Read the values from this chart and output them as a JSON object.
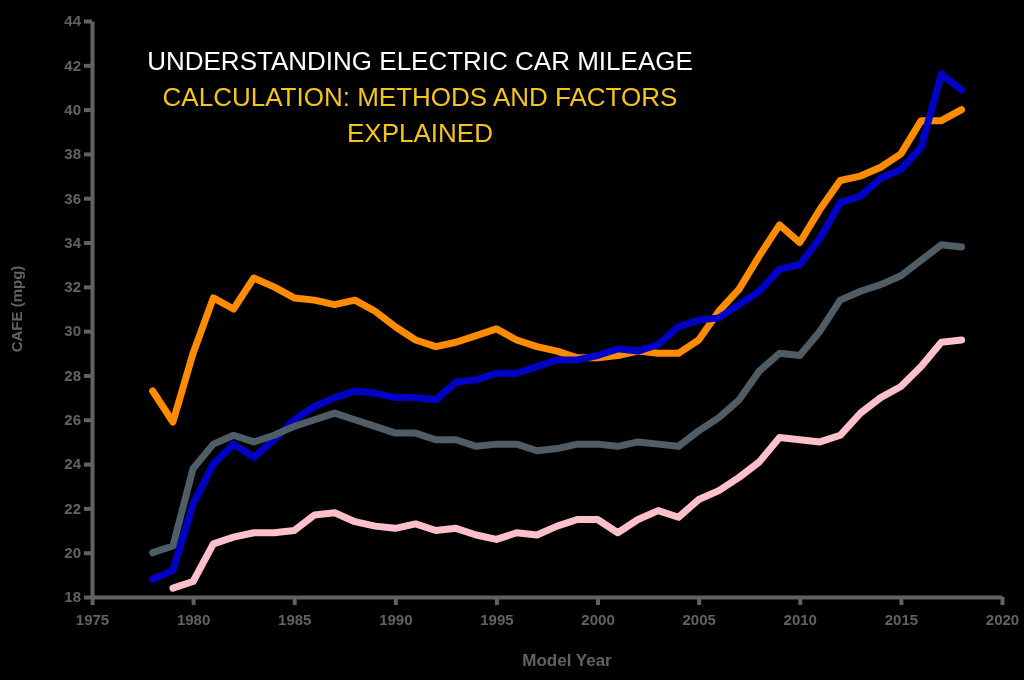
{
  "chart_data": {
    "type": "line",
    "title": "UNDERSTANDING ELECTRIC CAR MILEAGE CALCULATION: METHODS AND FACTORS EXPLAINED",
    "xlabel": "Model Year",
    "ylabel": "CAFE (mpg)",
    "xlim": [
      1975,
      2020
    ],
    "xticks": [
      1975,
      1980,
      1985,
      1990,
      1995,
      2000,
      2005,
      2010,
      2015,
      2020
    ],
    "ylim": [
      18,
      44
    ],
    "yticks": [
      18,
      20,
      22,
      24,
      26,
      28,
      30,
      32,
      34,
      36,
      38,
      40,
      42,
      44
    ],
    "grid": false,
    "marker": "none",
    "line_style": "solid",
    "series": [
      {
        "color": "#ff8c00",
        "x": [
          1978,
          1979,
          1980,
          1981,
          1982,
          1983,
          1984,
          1985,
          1986,
          1987,
          1988,
          1989,
          1990,
          1991,
          1992,
          1993,
          1994,
          1995,
          1996,
          1997,
          1998,
          1999,
          2000,
          2001,
          2002,
          2003,
          2004,
          2005,
          2006,
          2007,
          2008,
          2009,
          2010,
          2011,
          2012,
          2013,
          2014,
          2015,
          2016,
          2017,
          2018
        ],
        "values": [
          27.3,
          25.9,
          29.0,
          31.5,
          31.0,
          32.4,
          32.0,
          31.5,
          31.4,
          31.2,
          31.4,
          30.9,
          30.2,
          29.6,
          29.3,
          29.5,
          29.8,
          30.1,
          29.6,
          29.3,
          29.1,
          28.8,
          28.8,
          28.9,
          29.1,
          29.0,
          29.0,
          29.6,
          30.9,
          31.9,
          33.4,
          34.8,
          34.0,
          35.5,
          36.8,
          37.0,
          37.4,
          38.0,
          39.5,
          39.5,
          40.0
        ]
      },
      {
        "color": "#0000c8",
        "x": [
          1978,
          1979,
          1980,
          1981,
          1982,
          1983,
          1984,
          1985,
          1986,
          1987,
          1988,
          1989,
          1990,
          1991,
          1992,
          1993,
          1994,
          1995,
          1996,
          1997,
          1998,
          1999,
          2000,
          2001,
          2002,
          2003,
          2004,
          2005,
          2006,
          2007,
          2008,
          2009,
          2010,
          2011,
          2012,
          2013,
          2014,
          2015,
          2016,
          2017,
          2018
        ],
        "values": [
          18.8,
          19.2,
          22.2,
          24.0,
          24.9,
          24.3,
          25.1,
          26.0,
          26.6,
          27.0,
          27.3,
          27.2,
          27.0,
          27.0,
          26.9,
          27.7,
          27.8,
          28.1,
          28.1,
          28.4,
          28.7,
          28.7,
          28.9,
          29.2,
          29.1,
          29.4,
          30.2,
          30.5,
          30.6,
          31.2,
          31.8,
          32.8,
          33.0,
          34.2,
          35.8,
          36.1,
          36.9,
          37.3,
          38.3,
          41.6,
          40.9
        ]
      },
      {
        "color": "#4e5d66",
        "x": [
          1978,
          1979,
          1980,
          1981,
          1982,
          1983,
          1984,
          1985,
          1986,
          1987,
          1988,
          1989,
          1990,
          1991,
          1992,
          1993,
          1994,
          1995,
          1996,
          1997,
          1998,
          1999,
          2000,
          2001,
          2002,
          2003,
          2004,
          2005,
          2006,
          2007,
          2008,
          2009,
          2010,
          2011,
          2012,
          2013,
          2014,
          2015,
          2016,
          2017,
          2018
        ],
        "values": [
          20.0,
          20.3,
          23.8,
          24.9,
          25.3,
          25.0,
          25.3,
          25.7,
          26.0,
          26.3,
          26.0,
          25.7,
          25.4,
          25.4,
          25.1,
          25.1,
          24.8,
          24.9,
          24.9,
          24.6,
          24.7,
          24.9,
          24.9,
          24.8,
          25.0,
          24.9,
          24.8,
          25.5,
          26.1,
          26.9,
          28.2,
          29.0,
          28.9,
          30.0,
          31.4,
          31.8,
          32.1,
          32.5,
          33.2,
          33.9,
          33.8
        ]
      },
      {
        "color": "#ffc0cb",
        "x": [
          1979,
          1980,
          1981,
          1982,
          1983,
          1984,
          1985,
          1986,
          1987,
          1988,
          1989,
          1990,
          1991,
          1992,
          1993,
          1994,
          1995,
          1996,
          1997,
          1998,
          1999,
          2000,
          2001,
          2002,
          2003,
          2004,
          2005,
          2006,
          2007,
          2008,
          2009,
          2010,
          2011,
          2012,
          2013,
          2014,
          2015,
          2016,
          2017,
          2018
        ],
        "values": [
          18.4,
          18.7,
          20.4,
          20.7,
          20.9,
          20.9,
          21.0,
          21.7,
          21.8,
          21.4,
          21.2,
          21.1,
          21.3,
          21.0,
          21.1,
          20.8,
          20.6,
          20.9,
          20.8,
          21.2,
          21.5,
          21.5,
          20.9,
          21.5,
          21.9,
          21.6,
          22.4,
          22.8,
          23.4,
          24.1,
          25.2,
          25.1,
          25.0,
          25.3,
          26.3,
          27.0,
          27.5,
          28.4,
          29.5,
          29.6
        ]
      }
    ]
  }
}
